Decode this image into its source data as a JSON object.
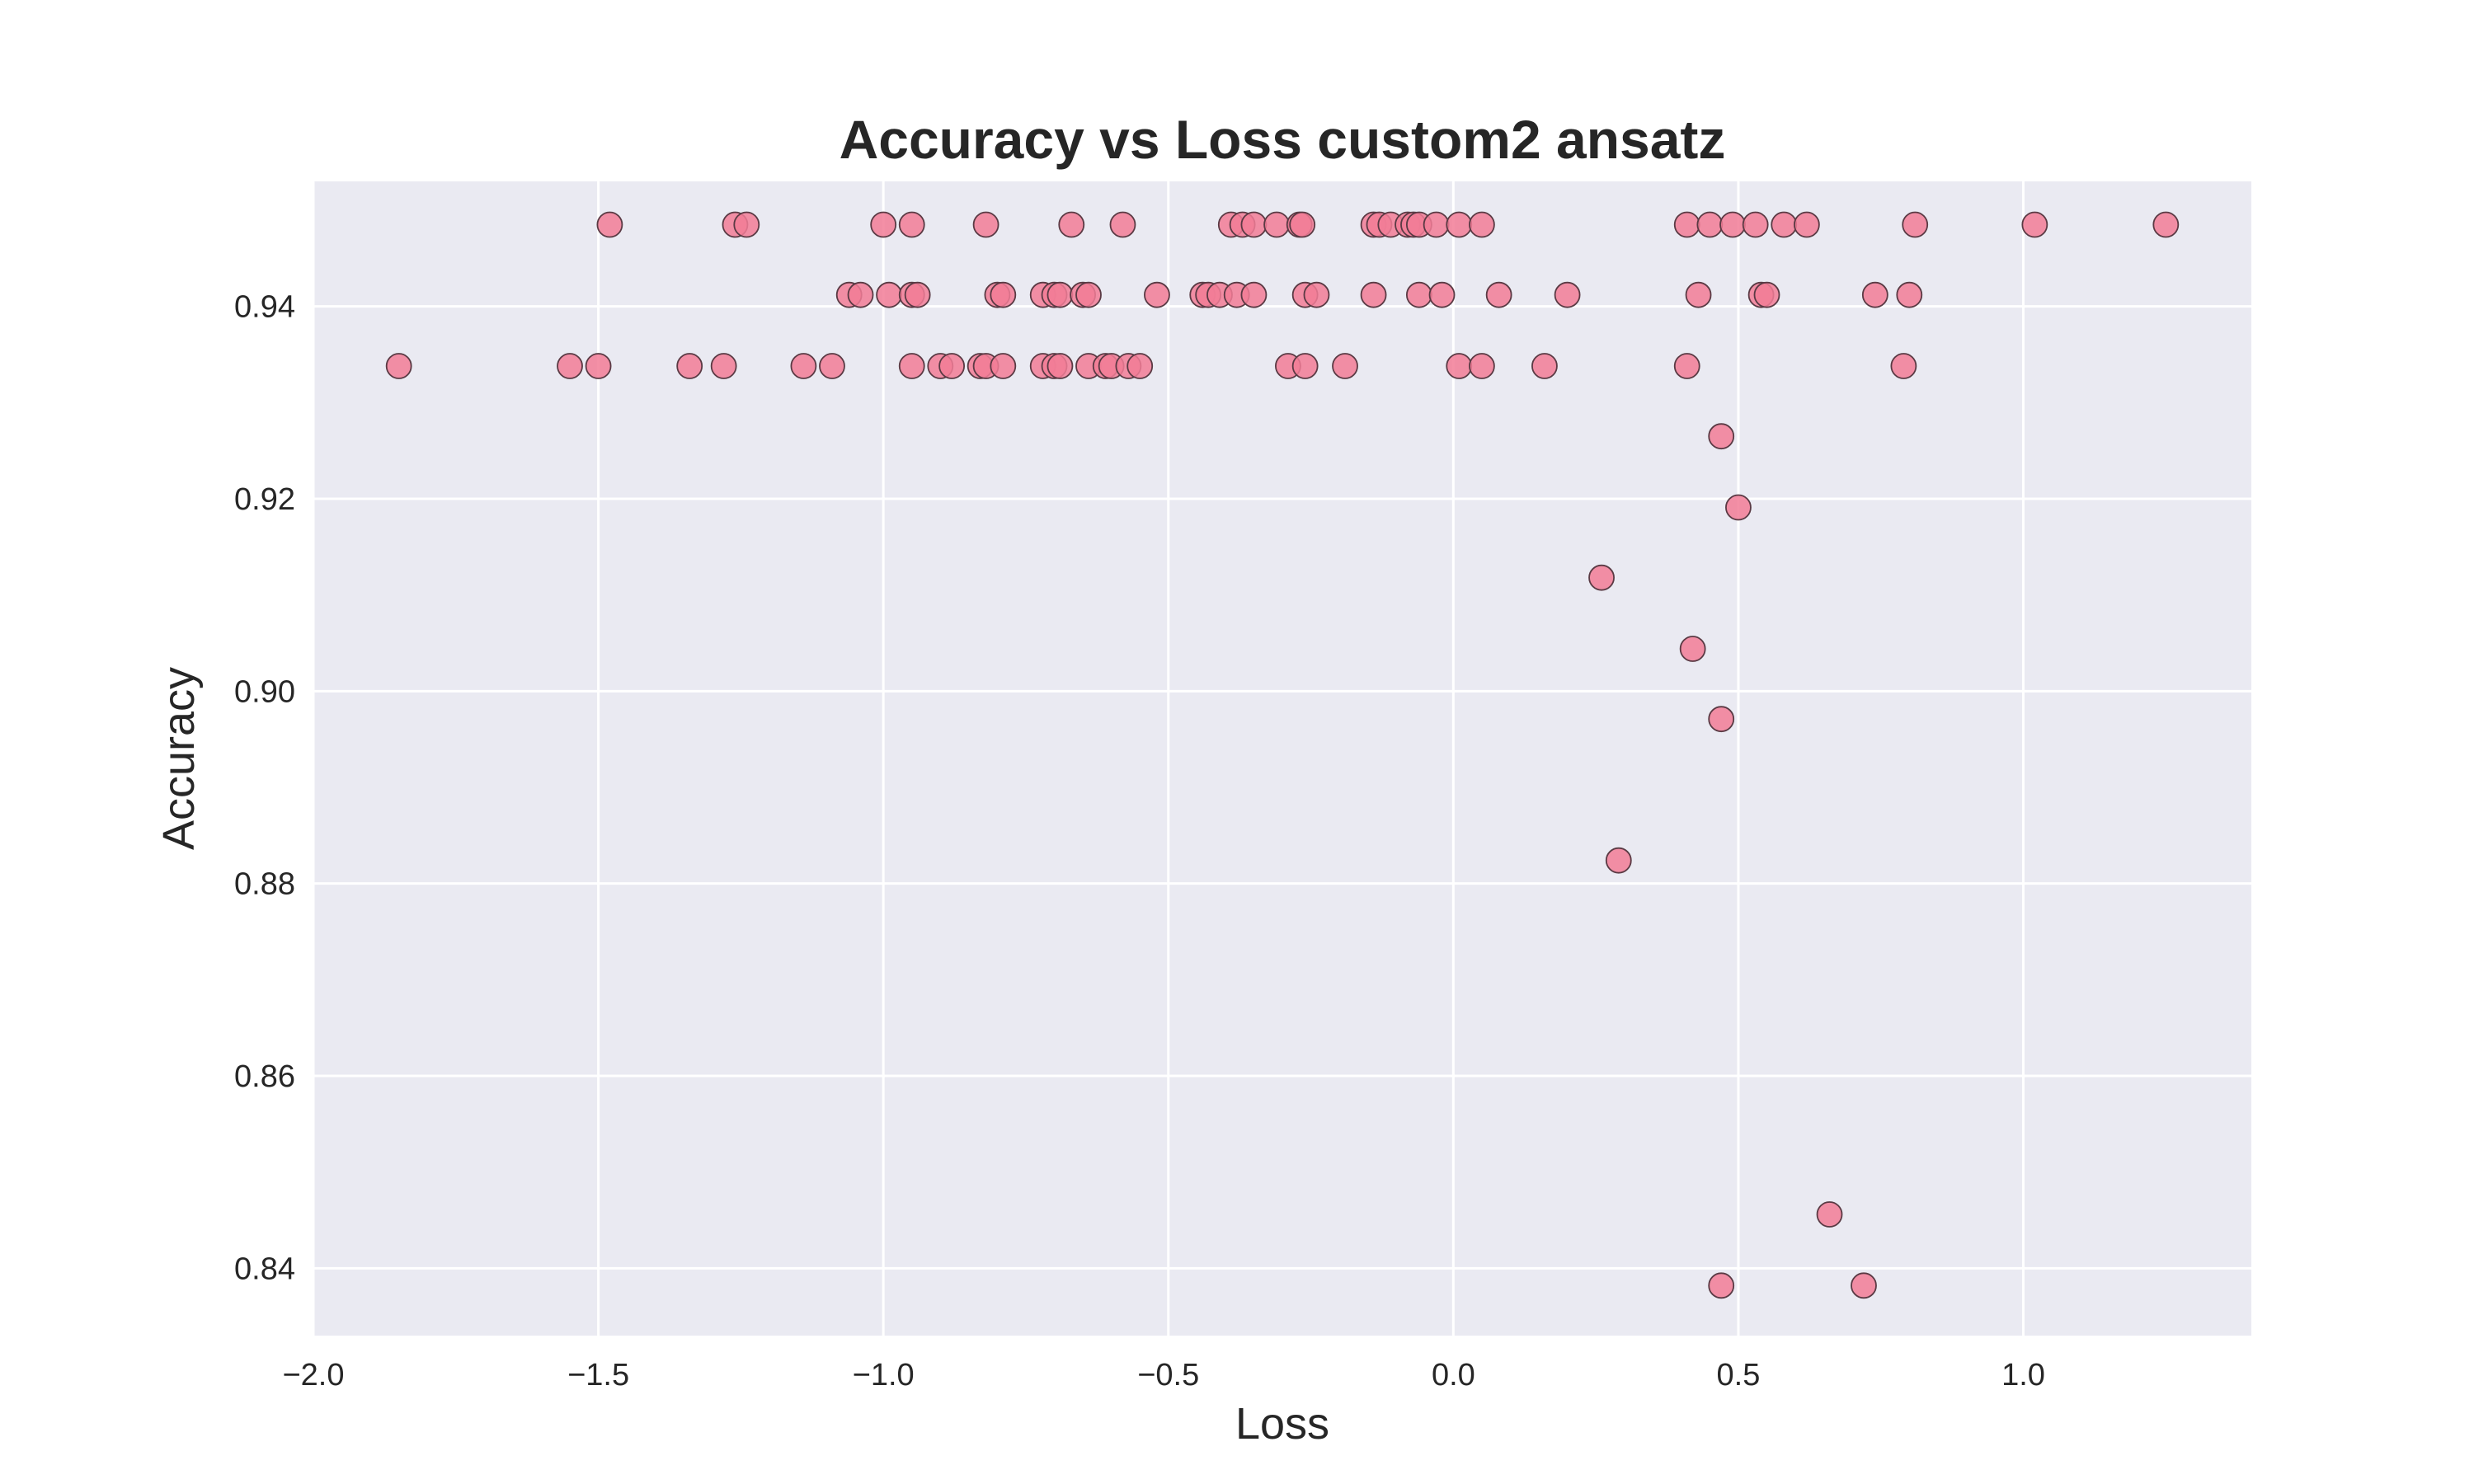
{
  "chart_data": {
    "type": "scatter",
    "title": "Accuracy vs Loss custom2 ansatz",
    "xlabel": "Loss",
    "ylabel": "Accuracy",
    "xlim": [
      -2.0,
      1.4
    ],
    "ylim": [
      0.833,
      0.953
    ],
    "x_ticks": [
      -2.0,
      -1.5,
      -1.0,
      -0.5,
      0.0,
      0.5,
      1.0
    ],
    "x_tick_labels": [
      "−2.0",
      "−1.5",
      "−1.0",
      "−0.5",
      "0.0",
      "0.5",
      "1.0"
    ],
    "y_ticks": [
      0.84,
      0.86,
      0.88,
      0.9,
      0.92,
      0.94
    ],
    "y_tick_labels": [
      "0.84",
      "0.86",
      "0.88",
      "0.90",
      "0.92",
      "0.94"
    ],
    "grid": true,
    "colors": {
      "plot_background": "#eaeaf2",
      "grid": "#ffffff",
      "point_fill": "#f27c97",
      "point_edge": "#5a3a44"
    },
    "points": [
      {
        "x": -1.48,
        "y": 0.9485
      },
      {
        "x": -1.26,
        "y": 0.9485
      },
      {
        "x": -1.24,
        "y": 0.9485
      },
      {
        "x": -1.0,
        "y": 0.9485
      },
      {
        "x": -0.95,
        "y": 0.9485
      },
      {
        "x": -0.82,
        "y": 0.9485
      },
      {
        "x": -0.67,
        "y": 0.9485
      },
      {
        "x": -0.58,
        "y": 0.9485
      },
      {
        "x": -0.39,
        "y": 0.9485
      },
      {
        "x": -0.37,
        "y": 0.9485
      },
      {
        "x": -0.35,
        "y": 0.9485
      },
      {
        "x": -0.31,
        "y": 0.9485
      },
      {
        "x": -0.27,
        "y": 0.9485
      },
      {
        "x": -0.265,
        "y": 0.9485
      },
      {
        "x": -0.14,
        "y": 0.9485
      },
      {
        "x": -0.13,
        "y": 0.9485
      },
      {
        "x": -0.11,
        "y": 0.9485
      },
      {
        "x": -0.08,
        "y": 0.9485
      },
      {
        "x": -0.07,
        "y": 0.9485
      },
      {
        "x": -0.06,
        "y": 0.9485
      },
      {
        "x": -0.03,
        "y": 0.9485
      },
      {
        "x": 0.01,
        "y": 0.9485
      },
      {
        "x": 0.05,
        "y": 0.9485
      },
      {
        "x": 0.41,
        "y": 0.9485
      },
      {
        "x": 0.45,
        "y": 0.9485
      },
      {
        "x": 0.49,
        "y": 0.9485
      },
      {
        "x": 0.53,
        "y": 0.9485
      },
      {
        "x": 0.58,
        "y": 0.9485
      },
      {
        "x": 0.62,
        "y": 0.9485
      },
      {
        "x": 0.81,
        "y": 0.9485
      },
      {
        "x": 1.02,
        "y": 0.9485
      },
      {
        "x": 1.25,
        "y": 0.9485
      },
      {
        "x": -1.06,
        "y": 0.9412
      },
      {
        "x": -1.04,
        "y": 0.9412
      },
      {
        "x": -0.99,
        "y": 0.9412
      },
      {
        "x": -0.95,
        "y": 0.9412
      },
      {
        "x": -0.94,
        "y": 0.9412
      },
      {
        "x": -0.8,
        "y": 0.9412
      },
      {
        "x": -0.79,
        "y": 0.9412
      },
      {
        "x": -0.72,
        "y": 0.9412
      },
      {
        "x": -0.7,
        "y": 0.9412
      },
      {
        "x": -0.69,
        "y": 0.9412
      },
      {
        "x": -0.65,
        "y": 0.9412
      },
      {
        "x": -0.64,
        "y": 0.9412
      },
      {
        "x": -0.52,
        "y": 0.9412
      },
      {
        "x": -0.44,
        "y": 0.9412
      },
      {
        "x": -0.43,
        "y": 0.9412
      },
      {
        "x": -0.41,
        "y": 0.9412
      },
      {
        "x": -0.38,
        "y": 0.9412
      },
      {
        "x": -0.35,
        "y": 0.9412
      },
      {
        "x": -0.26,
        "y": 0.9412
      },
      {
        "x": -0.24,
        "y": 0.9412
      },
      {
        "x": -0.14,
        "y": 0.9412
      },
      {
        "x": -0.06,
        "y": 0.9412
      },
      {
        "x": -0.02,
        "y": 0.9412
      },
      {
        "x": 0.08,
        "y": 0.9412
      },
      {
        "x": 0.2,
        "y": 0.9412
      },
      {
        "x": 0.43,
        "y": 0.9412
      },
      {
        "x": 0.54,
        "y": 0.9412
      },
      {
        "x": 0.55,
        "y": 0.9412
      },
      {
        "x": 0.74,
        "y": 0.9412
      },
      {
        "x": 0.8,
        "y": 0.9412
      },
      {
        "x": -1.85,
        "y": 0.9338
      },
      {
        "x": -1.55,
        "y": 0.9338
      },
      {
        "x": -1.5,
        "y": 0.9338
      },
      {
        "x": -1.34,
        "y": 0.9338
      },
      {
        "x": -1.28,
        "y": 0.9338
      },
      {
        "x": -1.14,
        "y": 0.9338
      },
      {
        "x": -1.09,
        "y": 0.9338
      },
      {
        "x": -0.95,
        "y": 0.9338
      },
      {
        "x": -0.9,
        "y": 0.9338
      },
      {
        "x": -0.88,
        "y": 0.9338
      },
      {
        "x": -0.83,
        "y": 0.9338
      },
      {
        "x": -0.82,
        "y": 0.9338
      },
      {
        "x": -0.79,
        "y": 0.9338
      },
      {
        "x": -0.72,
        "y": 0.9338
      },
      {
        "x": -0.7,
        "y": 0.9338
      },
      {
        "x": -0.69,
        "y": 0.9338
      },
      {
        "x": -0.64,
        "y": 0.9338
      },
      {
        "x": -0.61,
        "y": 0.9338
      },
      {
        "x": -0.6,
        "y": 0.9338
      },
      {
        "x": -0.57,
        "y": 0.9338
      },
      {
        "x": -0.55,
        "y": 0.9338
      },
      {
        "x": -0.29,
        "y": 0.9338
      },
      {
        "x": -0.26,
        "y": 0.9338
      },
      {
        "x": -0.19,
        "y": 0.9338
      },
      {
        "x": 0.01,
        "y": 0.9338
      },
      {
        "x": 0.05,
        "y": 0.9338
      },
      {
        "x": 0.16,
        "y": 0.9338
      },
      {
        "x": 0.41,
        "y": 0.9338
      },
      {
        "x": 0.79,
        "y": 0.9338
      },
      {
        "x": 0.47,
        "y": 0.9265
      },
      {
        "x": 0.5,
        "y": 0.9191
      },
      {
        "x": 0.26,
        "y": 0.9118
      },
      {
        "x": 0.42,
        "y": 0.9044
      },
      {
        "x": 0.47,
        "y": 0.8971
      },
      {
        "x": 0.29,
        "y": 0.8824
      },
      {
        "x": 0.66,
        "y": 0.8456
      },
      {
        "x": 0.47,
        "y": 0.8382
      },
      {
        "x": 0.72,
        "y": 0.8382
      }
    ]
  }
}
